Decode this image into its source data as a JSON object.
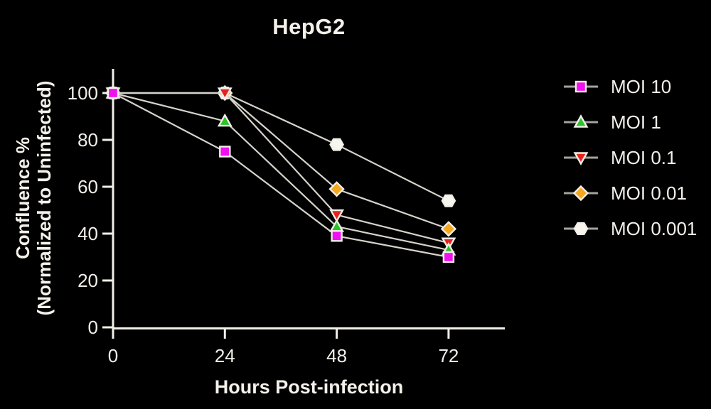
{
  "chart_data": {
    "type": "line",
    "title": "HepG2",
    "xlabel": "Hours Post-infection",
    "ylabel": "Confluence % (Normalized to Uninfected)",
    "ylabel_line1": "Confluence %",
    "ylabel_line2": "(Normalized to Uninfected)",
    "x": [
      0,
      24,
      48,
      72
    ],
    "xticks": [
      0,
      24,
      48,
      72
    ],
    "yticks": [
      0,
      20,
      40,
      60,
      80,
      100
    ],
    "xlim": [
      0,
      84
    ],
    "ylim": [
      0,
      105
    ],
    "grid": false,
    "legend_position": "right",
    "series": [
      {
        "name": "MOI 10",
        "marker": "square",
        "color": "#f010f0",
        "values": [
          100,
          75,
          39,
          30
        ]
      },
      {
        "name": "MOI 1",
        "marker": "triangle-up",
        "color": "#2cc22a",
        "values": [
          100,
          88,
          43,
          33
        ]
      },
      {
        "name": "MOI 0.1",
        "marker": "triangle-down",
        "color": "#e8211e",
        "values": [
          100,
          100,
          48,
          36
        ]
      },
      {
        "name": "MOI 0.01",
        "marker": "diamond",
        "color": "#f3a81f",
        "values": [
          100,
          100,
          59,
          42
        ]
      },
      {
        "name": "MOI 0.001",
        "marker": "hexagon",
        "color": "#f7f5ee",
        "values": [
          100,
          100,
          78,
          54
        ]
      }
    ]
  },
  "colors": {
    "background": "#000000",
    "text": "#f2efe9",
    "axis": "#f2efe9",
    "plot_line": "#d6d3cb",
    "legend_line": "#a5a39d",
    "marker_border": "#f2efe9"
  }
}
